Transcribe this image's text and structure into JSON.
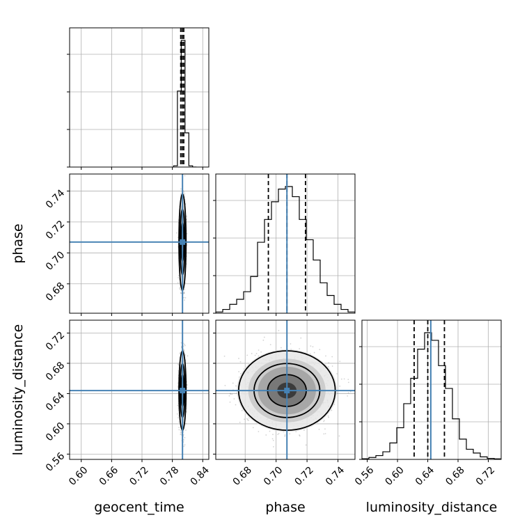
{
  "chart_data": {
    "type": "corner",
    "parameters": [
      "geocent_time",
      "phase",
      "luminosity_distance"
    ],
    "labels": {
      "geocent_time": "geocent_time",
      "phase": "phase",
      "luminosity_distance": "luminosity_distance"
    },
    "truths": {
      "geocent_time": 0.8,
      "phase": 0.707,
      "luminosity_distance": 0.644
    },
    "truth_color": "#4682b4",
    "ranges": {
      "geocent_time": [
        0.577,
        0.852
      ],
      "phase": [
        0.661,
        0.751
      ],
      "luminosity_distance": [
        0.553,
        0.737
      ]
    },
    "ticks": {
      "geocent_time": [
        "0.60",
        "0.66",
        "0.72",
        "0.78",
        "0.84"
      ],
      "phase": [
        "0.68",
        "0.70",
        "0.72",
        "0.74"
      ],
      "luminosity_distance": [
        "0.56",
        "0.60",
        "0.64",
        "0.68",
        "0.72"
      ]
    },
    "quantiles": {
      "geocent_time": [
        0.7965,
        0.7995,
        0.8025
      ],
      "phase": [
        0.695,
        0.707,
        0.719
      ],
      "luminosity_distance": [
        0.622,
        0.64,
        0.662
      ]
    },
    "marginals": {
      "geocent_time": {
        "edges": [
          0.7825,
          0.79,
          0.7975,
          0.805,
          0.8125,
          0.82,
          0.8275
        ],
        "counts": [
          0.01,
          0.6,
          1.0,
          0.27,
          0.01,
          0.0
        ]
      },
      "phase": {
        "edges": [
          0.661,
          0.6655,
          0.67,
          0.6745,
          0.679,
          0.6835,
          0.688,
          0.6925,
          0.697,
          0.7015,
          0.706,
          0.7105,
          0.715,
          0.7195,
          0.724,
          0.7285,
          0.733,
          0.7375,
          0.742,
          0.7465,
          0.751
        ],
        "counts": [
          0.01,
          0.03,
          0.07,
          0.11,
          0.17,
          0.29,
          0.56,
          0.74,
          0.88,
          0.98,
          1.0,
          0.92,
          0.74,
          0.58,
          0.42,
          0.24,
          0.14,
          0.07,
          0.03,
          0.01
        ]
      },
      "luminosity_distance": {
        "edges": [
          0.553,
          0.5622,
          0.5714,
          0.5806,
          0.5898,
          0.599,
          0.6082,
          0.6174,
          0.6266,
          0.6358,
          0.645,
          0.6542,
          0.6634,
          0.6726,
          0.6818,
          0.691,
          0.7002,
          0.7094,
          0.7186,
          0.7278,
          0.737
        ],
        "counts": [
          0.005,
          0.015,
          0.03,
          0.06,
          0.13,
          0.25,
          0.44,
          0.64,
          0.87,
          1.0,
          0.94,
          0.74,
          0.56,
          0.32,
          0.16,
          0.08,
          0.05,
          0.02,
          0.008,
          0.004
        ]
      }
    },
    "joint": {
      "geocent_time|phase": {
        "mean": [
          0.8,
          0.707
        ],
        "sd": [
          0.0028,
          0.0125
        ]
      },
      "geocent_time|luminosity_distance": {
        "mean": [
          0.8,
          0.644
        ],
        "sd": [
          0.0028,
          0.021
        ]
      },
      "phase|luminosity_distance": {
        "mean": [
          0.707,
          0.644
        ],
        "sd": [
          0.0125,
          0.021
        ]
      }
    },
    "grid": true,
    "points_color": "#808080",
    "contour_color": "#000000"
  }
}
